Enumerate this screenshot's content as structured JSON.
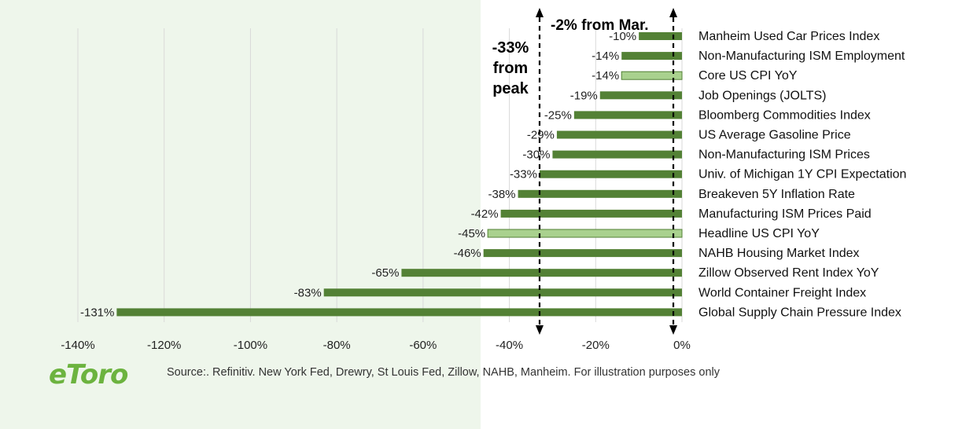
{
  "chart_data": {
    "type": "bar",
    "orientation": "horizontal",
    "categories": [
      "Manheim Used Car Prices Index",
      "Non-Manufacturing ISM Employment",
      "Core US CPI YoY",
      "Job Openings (JOLTS)",
      "Bloomberg Commodities Index",
      "US Average Gasoline Price",
      "Non-Manufacturing ISM Prices",
      "Univ. of Michigan 1Y CPI Expectation",
      "Breakeven 5Y Inflation Rate",
      "Manufacturing ISM Prices Paid",
      "Headline US CPI YoY",
      "NAHB Housing Market Index",
      "Zillow Observed Rent Index YoY",
      "World Container Freight Index",
      "Global Supply Chain Pressure Index"
    ],
    "values": [
      -10,
      -14,
      -14,
      -19,
      -25,
      -29,
      -30,
      -33,
      -38,
      -42,
      -45,
      -46,
      -65,
      -83,
      -131
    ],
    "data_labels": [
      "-10%",
      "-14%",
      "-14%",
      "-19%",
      "-25%",
      "-29%",
      "-30%",
      "-33%",
      "-38%",
      "-42%",
      "-45%",
      "-46%",
      "-65%",
      "-83%",
      "-131%"
    ],
    "highlighted": [
      "Core US CPI YoY",
      "Headline US CPI YoY"
    ],
    "xlim": [
      -140,
      0
    ],
    "xticks": [
      -140,
      -120,
      -100,
      -80,
      -60,
      -40,
      -20,
      0
    ],
    "xtick_labels": [
      "-140%",
      "-120%",
      "-100%",
      "-80%",
      "-60%",
      "-40%",
      "-20%",
      "0%"
    ],
    "reference_lines": [
      -33,
      -2
    ],
    "grid": "vertical",
    "colors": {
      "bar": "#538135",
      "highlight_bar": "#a9d18e",
      "grid": "#d9d9d9"
    }
  },
  "annotations": {
    "peak": [
      "-33%",
      "from",
      "peak"
    ],
    "mar": "-2%  from Mar."
  },
  "logo_text": "eToro",
  "logo_color": "#6cb33f",
  "source": "Source:. Refinitiv. New York Fed, Drewry, St Louis Fed, Zillow, NAHB, Manheim.  For illustration purposes only"
}
